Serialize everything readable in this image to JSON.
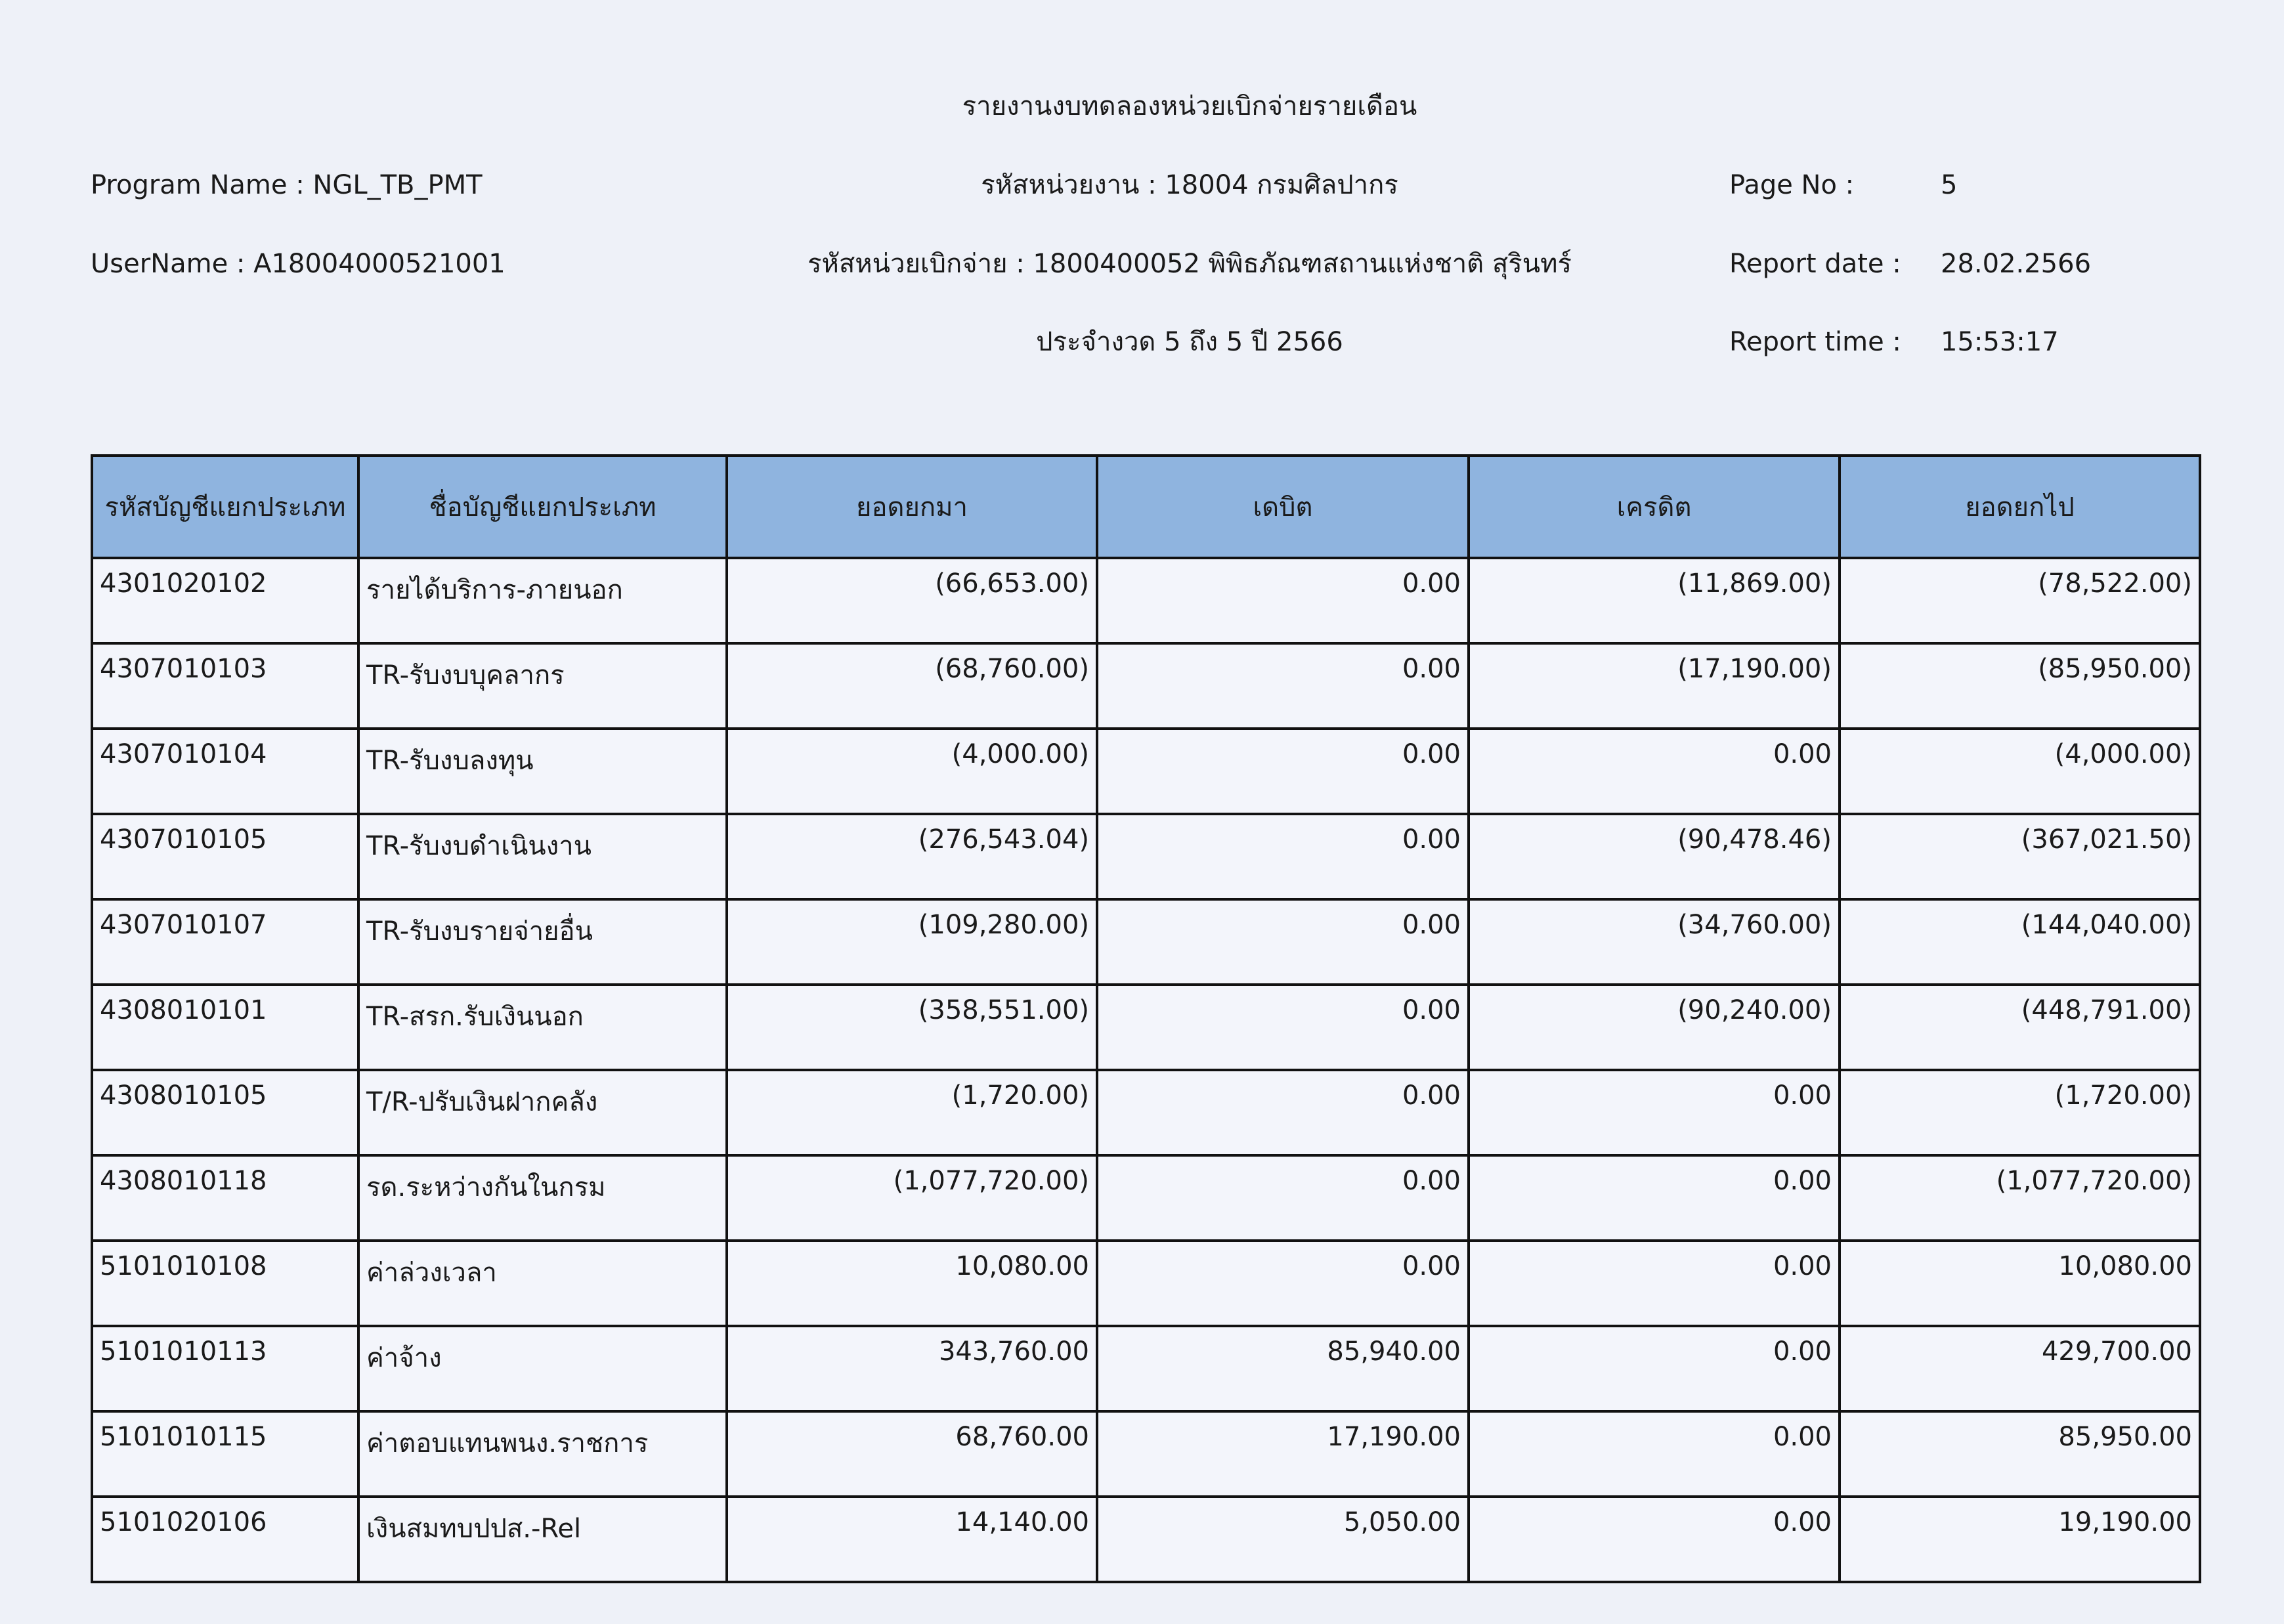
{
  "report": {
    "title": "รายงานงบทดลองหน่วยเบิกจ่ายรายเดือน",
    "program_name": "Program Name : NGL_TB_PMT",
    "agency": "รหัสหน่วยงาน : 18004 กรมศิลปากร",
    "page_label": "Page No :",
    "page_value": "5",
    "username": "UserName : A18004000521001",
    "disbursing_unit": "รหัสหน่วยเบิกจ่าย : 1800400052 พิพิธภัณฑสถานแห่งชาติ สุรินทร์",
    "date_label": "Report date :",
    "date_value": "28.02.2566",
    "period": "ประจำงวด 5 ถึง 5 ปี 2566",
    "time_label": "Report time :",
    "time_value": "15:53:17"
  },
  "table": {
    "headers": [
      "รหัสบัญชีแยกประเภท",
      "ชื่อบัญชีแยกประเภท",
      "ยอดยกมา",
      "เดบิต",
      "เครดิต",
      "ยอดยกไป"
    ],
    "rows": [
      [
        "4301020102",
        "รายได้บริการ-ภายนอก",
        "(66,653.00)",
        "0.00",
        "(11,869.00)",
        "(78,522.00)"
      ],
      [
        "4307010103",
        "TR-รับงบบุคลากร",
        "(68,760.00)",
        "0.00",
        "(17,190.00)",
        "(85,950.00)"
      ],
      [
        "4307010104",
        "TR-รับงบลงทุน",
        "(4,000.00)",
        "0.00",
        "0.00",
        "(4,000.00)"
      ],
      [
        "4307010105",
        "TR-รับงบดำเนินงาน",
        "(276,543.04)",
        "0.00",
        "(90,478.46)",
        "(367,021.50)"
      ],
      [
        "4307010107",
        "TR-รับงบรายจ่ายอื่น",
        "(109,280.00)",
        "0.00",
        "(34,760.00)",
        "(144,040.00)"
      ],
      [
        "4308010101",
        "TR-สรก.รับเงินนอก",
        "(358,551.00)",
        "0.00",
        "(90,240.00)",
        "(448,791.00)"
      ],
      [
        "4308010105",
        "T/R-ปรับเงินฝากคลัง",
        "(1,720.00)",
        "0.00",
        "0.00",
        "(1,720.00)"
      ],
      [
        "4308010118",
        "รด.ระหว่างกันในกรม",
        "(1,077,720.00)",
        "0.00",
        "0.00",
        "(1,077,720.00)"
      ],
      [
        "5101010108",
        "ค่าล่วงเวลา",
        "10,080.00",
        "0.00",
        "0.00",
        "10,080.00"
      ],
      [
        "5101010113",
        "ค่าจ้าง",
        "343,760.00",
        "85,940.00",
        "0.00",
        "429,700.00"
      ],
      [
        "5101010115",
        "ค่าตอบแทนพนง.ราชการ",
        "68,760.00",
        "17,190.00",
        "0.00",
        "85,950.00"
      ],
      [
        "5101020106",
        "เงินสมทบปปส.-Rel",
        "14,140.00",
        "5,050.00",
        "0.00",
        "19,190.00"
      ]
    ]
  },
  "colors": {
    "header_fill": "#8fb4df",
    "paper": "#eef1f8"
  }
}
